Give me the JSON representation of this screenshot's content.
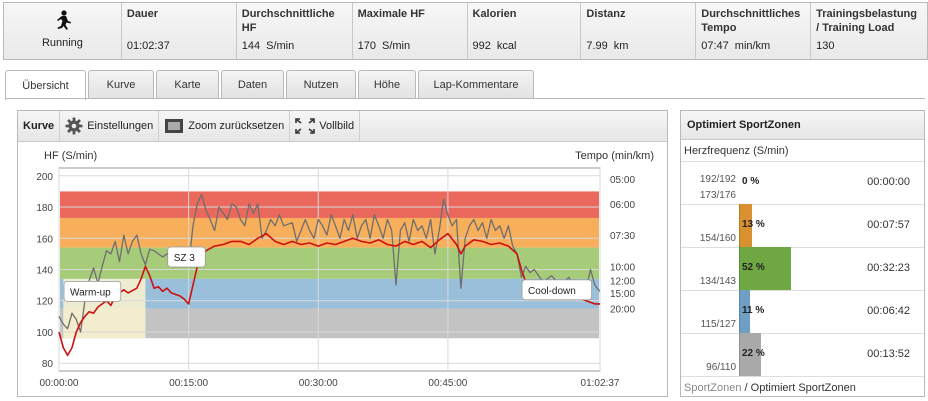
{
  "stats": {
    "sport": "Running",
    "items": [
      {
        "label": "Dauer",
        "value": "01:02:37",
        "unit": ""
      },
      {
        "label": "Durchschnittliche HF",
        "value": "144",
        "unit": "S/min"
      },
      {
        "label": "Maximale HF",
        "value": "170",
        "unit": "S/min"
      },
      {
        "label": "Kalorien",
        "value": "992",
        "unit": "kcal"
      },
      {
        "label": "Distanz",
        "value": "7.99",
        "unit": "km"
      },
      {
        "label": "Durchschnittliches Tempo",
        "value": "07:47",
        "unit": "min/km"
      },
      {
        "label": "Trainingsbelastung / Training Load",
        "value": "130",
        "unit": ""
      }
    ]
  },
  "tabs": [
    "Übersicht",
    "Kurve",
    "Karte",
    "Daten",
    "Nutzen",
    "Höhe",
    "Lap-Kommentare"
  ],
  "active_tab": "Übersicht",
  "toolbar": {
    "title": "Kurve",
    "settings": "Einstellungen",
    "zoom_reset": "Zoom zurücksetzen",
    "fullscreen": "Vollbild"
  },
  "chart_data": {
    "type": "line",
    "y_left_label": "HF (S/min)",
    "y_right_label": "Tempo (min/km)",
    "ylim": [
      75,
      205
    ],
    "y_ticks": [
      80,
      100,
      120,
      140,
      160,
      180,
      200
    ],
    "x_ticks": [
      "00:00:00",
      "00:15:00",
      "00:30:00",
      "00:45:00",
      "01:02:37"
    ],
    "x_tick_minutes": [
      0,
      15,
      30,
      45,
      62.6
    ],
    "xlim": [
      0,
      62.6
    ],
    "right_ticks": [
      {
        "label": "05:00",
        "hf": 198
      },
      {
        "label": "06:00",
        "hf": 182
      },
      {
        "label": "07:30",
        "hf": 162
      },
      {
        "label": "10:00",
        "hf": 142
      },
      {
        "label": "12:00",
        "hf": 133
      },
      {
        "label": "15:00",
        "hf": 125
      },
      {
        "label": "20:00",
        "hf": 115
      }
    ],
    "zones": [
      {
        "from": 173,
        "to": 190,
        "color": "#e8584a"
      },
      {
        "from": 154,
        "to": 173,
        "color": "#f6a64a"
      },
      {
        "from": 134,
        "to": 154,
        "color": "#9cc56a"
      },
      {
        "from": 115,
        "to": 134,
        "color": "#8fb8d6"
      },
      {
        "from": 96,
        "to": 115,
        "color": "#bdbdbd"
      }
    ],
    "annotations": [
      {
        "text": "Warm-up",
        "minute": 0,
        "hf": 126
      },
      {
        "text": "SZ 3",
        "minute": 12,
        "hf": 148
      },
      {
        "text": "Cool-down",
        "minute": 53,
        "hf": 127
      }
    ],
    "highlight": {
      "from_minute": 0.5,
      "to_minute": 10,
      "hf_from": 96,
      "hf_to": 134,
      "color": "#fbf3cf"
    },
    "series": [
      {
        "color": "#cc1111",
        "points": [
          [
            0,
            100
          ],
          [
            0.5,
            90
          ],
          [
            1,
            85
          ],
          [
            1.5,
            90
          ],
          [
            2,
            100
          ],
          [
            2.5,
            106
          ],
          [
            3,
            110
          ],
          [
            3.5,
            113
          ],
          [
            4,
            112
          ],
          [
            4.5,
            116
          ],
          [
            5,
            118
          ],
          [
            5.5,
            120
          ],
          [
            6,
            117
          ],
          [
            6.5,
            123
          ],
          [
            7,
            125
          ],
          [
            7.5,
            127
          ],
          [
            8,
            125
          ],
          [
            9,
            128
          ],
          [
            9.5,
            134
          ],
          [
            10,
            142
          ],
          [
            10.5,
            136
          ],
          [
            11,
            128
          ],
          [
            11.5,
            129
          ],
          [
            12,
            126
          ],
          [
            12.5,
            128
          ],
          [
            13,
            125
          ],
          [
            14,
            123
          ],
          [
            14.5,
            121
          ],
          [
            15,
            118
          ],
          [
            15.5,
            130
          ],
          [
            16,
            142
          ],
          [
            17,
            152
          ],
          [
            18,
            155
          ],
          [
            19,
            156
          ],
          [
            20,
            158
          ],
          [
            21,
            158
          ],
          [
            22,
            156
          ],
          [
            23,
            160
          ],
          [
            24,
            163
          ],
          [
            25,
            158
          ],
          [
            26,
            156
          ],
          [
            27,
            158
          ],
          [
            28,
            156
          ],
          [
            29,
            157
          ],
          [
            30,
            155
          ],
          [
            31,
            157
          ],
          [
            32,
            156
          ],
          [
            33,
            158
          ],
          [
            34,
            160
          ],
          [
            35,
            158
          ],
          [
            36,
            157
          ],
          [
            37,
            159
          ],
          [
            38,
            156
          ],
          [
            39,
            155
          ],
          [
            40,
            158
          ],
          [
            41,
            156
          ],
          [
            42,
            158
          ],
          [
            43,
            154
          ],
          [
            44,
            159
          ],
          [
            45,
            163
          ],
          [
            46,
            156
          ],
          [
            46.5,
            150
          ],
          [
            47,
            155
          ],
          [
            48,
            159
          ],
          [
            49,
            158
          ],
          [
            50,
            156
          ],
          [
            51,
            157
          ],
          [
            52,
            155
          ],
          [
            53,
            150
          ],
          [
            53.5,
            140
          ],
          [
            54,
            132
          ],
          [
            55,
            127
          ],
          [
            56,
            124
          ],
          [
            57,
            122
          ],
          [
            58,
            124
          ],
          [
            59,
            121
          ],
          [
            60,
            122
          ],
          [
            61,
            120
          ],
          [
            62,
            118
          ],
          [
            62.6,
            118
          ]
        ]
      },
      {
        "color": "#6e6e6e",
        "points": [
          [
            0,
            110
          ],
          [
            0.5,
            105
          ],
          [
            1,
            102
          ],
          [
            1.5,
            112
          ],
          [
            2,
            108
          ],
          [
            2.5,
            100
          ],
          [
            3,
            120
          ],
          [
            3.5,
            133
          ],
          [
            4,
            141
          ],
          [
            4.5,
            131
          ],
          [
            5,
            142
          ],
          [
            5.5,
            152
          ],
          [
            6,
            150
          ],
          [
            6.5,
            158
          ],
          [
            7,
            145
          ],
          [
            7.5,
            162
          ],
          [
            8,
            150
          ],
          [
            8.5,
            158
          ],
          [
            9,
            162
          ],
          [
            9.5,
            150
          ],
          [
            10,
            143
          ],
          [
            10.5,
            153
          ],
          [
            11,
            152
          ],
          [
            11.5,
            150
          ],
          [
            12,
            148
          ],
          [
            12.5,
            150
          ],
          [
            13,
            148
          ],
          [
            14,
            148
          ],
          [
            14.5,
            150
          ],
          [
            15,
            142
          ],
          [
            15.5,
            168
          ],
          [
            16,
            182
          ],
          [
            16.5,
            188
          ],
          [
            17,
            178
          ],
          [
            17.5,
            172
          ],
          [
            18,
            165
          ],
          [
            18.5,
            180
          ],
          [
            19,
            176
          ],
          [
            19.5,
            172
          ],
          [
            20,
            182
          ],
          [
            20.5,
            180
          ],
          [
            21,
            172
          ],
          [
            21.5,
            168
          ],
          [
            22,
            182
          ],
          [
            22.5,
            176
          ],
          [
            23,
            182
          ],
          [
            23.5,
            160
          ],
          [
            24,
            165
          ],
          [
            24.5,
            172
          ],
          [
            25,
            168
          ],
          [
            25.5,
            175
          ],
          [
            26,
            168
          ],
          [
            27,
            170
          ],
          [
            27.5,
            158
          ],
          [
            28,
            165
          ],
          [
            28.5,
            172
          ],
          [
            29,
            165
          ],
          [
            29.5,
            160
          ],
          [
            30,
            172
          ],
          [
            30.5,
            168
          ],
          [
            31,
            162
          ],
          [
            31.5,
            175
          ],
          [
            32,
            168
          ],
          [
            32.5,
            160
          ],
          [
            33,
            172
          ],
          [
            33.5,
            165
          ],
          [
            34,
            175
          ],
          [
            34.5,
            160
          ],
          [
            35,
            168
          ],
          [
            35.5,
            172
          ],
          [
            36,
            160
          ],
          [
            36.5,
            175
          ],
          [
            37,
            168
          ],
          [
            37.5,
            160
          ],
          [
            38,
            172
          ],
          [
            38.5,
            165
          ],
          [
            39,
            130
          ],
          [
            39.5,
            165
          ],
          [
            40,
            170
          ],
          [
            40.5,
            158
          ],
          [
            41,
            172
          ],
          [
            41.5,
            165
          ],
          [
            42,
            168
          ],
          [
            42.5,
            160
          ],
          [
            43,
            172
          ],
          [
            43.5,
            150
          ],
          [
            44,
            165
          ],
          [
            44.5,
            185
          ],
          [
            45,
            175
          ],
          [
            45.5,
            168
          ],
          [
            46,
            172
          ],
          [
            46.5,
            128
          ],
          [
            47,
            160
          ],
          [
            47.5,
            168
          ],
          [
            48,
            172
          ],
          [
            48.5,
            165
          ],
          [
            49,
            170
          ],
          [
            49.5,
            160
          ],
          [
            50,
            172
          ],
          [
            50.5,
            165
          ],
          [
            51,
            168
          ],
          [
            51.5,
            160
          ],
          [
            52,
            168
          ],
          [
            52.5,
            155
          ],
          [
            53,
            150
          ],
          [
            53.5,
            135
          ],
          [
            54,
            142
          ],
          [
            54.5,
            138
          ],
          [
            55,
            140
          ],
          [
            56,
            132
          ],
          [
            57,
            136
          ],
          [
            58,
            130
          ],
          [
            59,
            135
          ],
          [
            60,
            125
          ],
          [
            61,
            128
          ],
          [
            61.5,
            140
          ],
          [
            62,
            130
          ],
          [
            62.6,
            126
          ]
        ]
      }
    ]
  },
  "zones": {
    "title": "Optimiert SportZonen",
    "subtitle": "Herzfrequenz (S/min)",
    "rows": [
      {
        "upper": "192/192",
        "lower": "173/176",
        "pct": "0 %",
        "fraction": 0.0,
        "time": "00:00:00",
        "color": "#d84a3a"
      },
      {
        "upper": "",
        "lower": "154/160",
        "pct": "13 %",
        "fraction": 0.13,
        "time": "00:07:57",
        "color": "#d9912f"
      },
      {
        "upper": "",
        "lower": "134/143",
        "pct": "52 %",
        "fraction": 0.52,
        "time": "00:32:23",
        "color": "#6fa843"
      },
      {
        "upper": "",
        "lower": "115/127",
        "pct": "11 %",
        "fraction": 0.11,
        "time": "00:06:42",
        "color": "#6e9fc2"
      },
      {
        "upper": "",
        "lower": "96/110",
        "pct": "22 %",
        "fraction": 0.22,
        "time": "00:13:52",
        "color": "#a9a9a9"
      }
    ],
    "footer_link": "SportZonen",
    "footer_sep": " / ",
    "footer_text": "Optimiert SportZonen"
  }
}
